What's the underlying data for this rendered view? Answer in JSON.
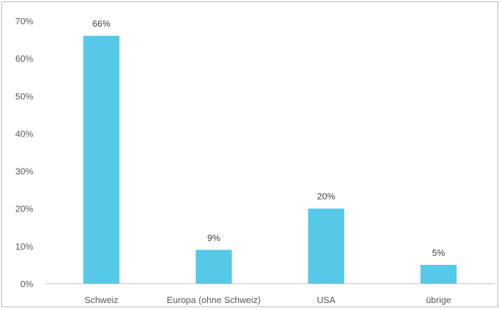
{
  "chart_data": {
    "type": "bar",
    "categories": [
      "Schweiz",
      "Europa (ohne Schweiz)",
      "USA",
      "übrige"
    ],
    "values": [
      66,
      9,
      20,
      5
    ],
    "value_labels": [
      "66%",
      "9%",
      "20%",
      "5%"
    ],
    "ylim": [
      0,
      70
    ],
    "yticks": [
      0,
      10,
      20,
      30,
      40,
      50,
      60,
      70
    ],
    "ytick_labels": [
      "0%",
      "10%",
      "20%",
      "30%",
      "40%",
      "50%",
      "60%",
      "70%"
    ],
    "grid": false,
    "legend": "none",
    "bar_color": "#56C8E8",
    "axis_color": "#bfbfbf",
    "text_color": "#595959"
  }
}
